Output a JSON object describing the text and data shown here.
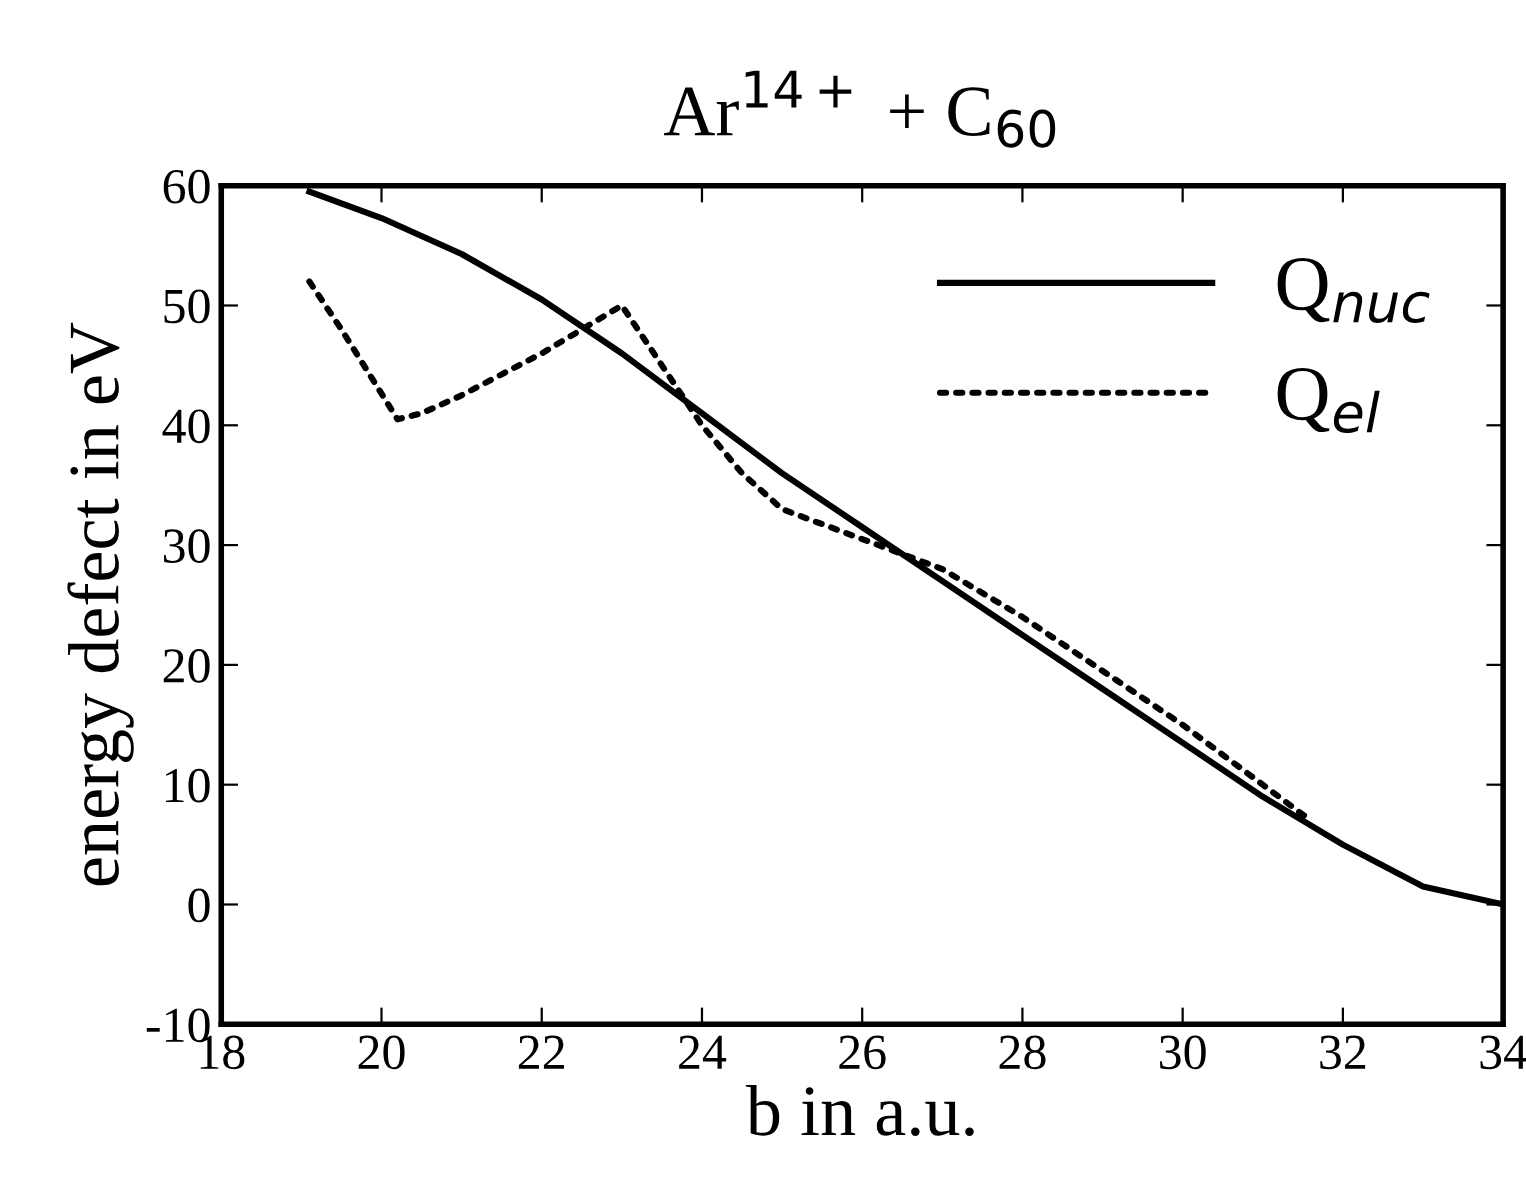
{
  "chart_data": {
    "type": "line",
    "title": "Ar$^{14+}$ + C$_{60}$",
    "xlabel": "b in a.u.",
    "ylabel": "energy defect in eV",
    "xlim": [
      18,
      34
    ],
    "xticks": [
      18,
      20,
      22,
      24,
      26,
      28,
      30,
      32,
      34
    ],
    "ylim": [
      -10,
      60
    ],
    "yticks": [
      -10,
      0,
      10,
      20,
      30,
      40,
      50,
      60
    ],
    "grid": false,
    "legend": "top right",
    "series": [
      {
        "name": "Q$_{nuc}$",
        "color": "#000000",
        "line_style": "solid",
        "x": [
          19.1,
          20,
          21,
          22,
          23,
          24,
          25,
          26,
          27,
          28,
          29,
          30,
          31,
          32,
          33,
          34
        ],
        "values": [
          59.5,
          57.3,
          54.3,
          50.5,
          46,
          41,
          36,
          31.5,
          27,
          22.5,
          18,
          13.5,
          9,
          5,
          1.5,
          0
        ]
      },
      {
        "name": "Q$_{el}$",
        "color": "#000000",
        "line_style": "dotted",
        "x": [
          19.1,
          19.5,
          20.2,
          20.5,
          21,
          22,
          23,
          23.5,
          24,
          24.5,
          25,
          26,
          27,
          28,
          29,
          30,
          31,
          31.6
        ],
        "values": [
          52,
          48,
          40.5,
          41,
          42.5,
          46,
          50,
          45,
          40,
          36,
          33,
          30.5,
          28,
          24,
          19.5,
          15,
          10,
          7
        ]
      }
    ]
  }
}
